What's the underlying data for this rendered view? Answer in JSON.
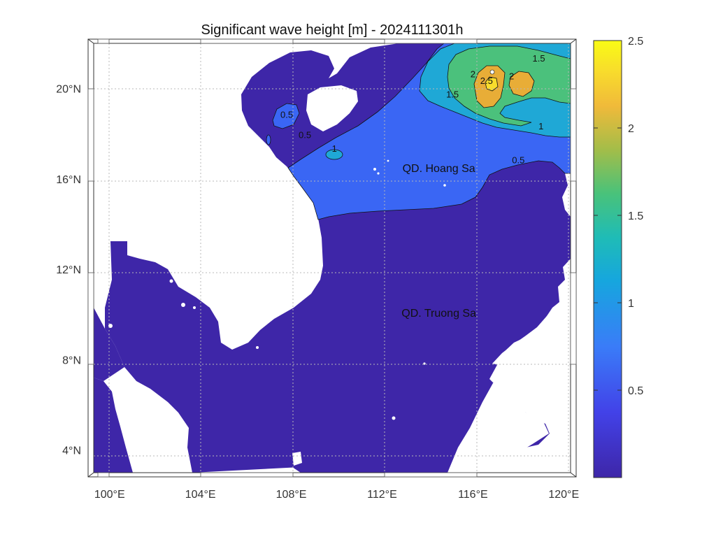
{
  "title": "Significant wave height [m] - 2024111301h",
  "map": {
    "lon_range": [
      99.3,
      120.3
    ],
    "lat_range": [
      3.0,
      22.0
    ],
    "lon_ticks": [
      100,
      104,
      108,
      112,
      116,
      120
    ],
    "lat_ticks": [
      4,
      8,
      12,
      16,
      20
    ],
    "lon_labels": [
      "100°E",
      "104°E",
      "108°E",
      "112°E",
      "116°E",
      "120°E"
    ],
    "lat_labels": [
      "4°N",
      "8°N",
      "12°N",
      "16°N",
      "20°N"
    ],
    "grid": true,
    "land_color": "#ffffff"
  },
  "places": [
    {
      "name": "QD. Hoang Sa",
      "lon": 114.5,
      "lat": 16.3
    },
    {
      "name": "QD. Truong Sa",
      "lon": 114.5,
      "lat": 9.9
    }
  ],
  "contour_labels": [
    {
      "text": "0.5",
      "lon": 107.8,
      "lat": 18.7
    },
    {
      "text": "0.5",
      "lon": 108.6,
      "lat": 17.8
    },
    {
      "text": "1",
      "lon": 109.9,
      "lat": 17.2
    },
    {
      "text": "0.5",
      "lon": 118.0,
      "lat": 16.7
    },
    {
      "text": "1.5",
      "lon": 118.9,
      "lat": 21.2
    },
    {
      "text": "2",
      "lon": 116.0,
      "lat": 20.5
    },
    {
      "text": "2.5",
      "lon": 116.6,
      "lat": 20.2
    },
    {
      "text": "2",
      "lon": 117.7,
      "lat": 20.4
    },
    {
      "text": "1.5",
      "lon": 115.1,
      "lat": 19.6
    },
    {
      "text": "1",
      "lon": 119.0,
      "lat": 18.2
    }
  ],
  "colorbar": {
    "min": 0,
    "max": 2.5,
    "ticks": [
      "2.5",
      "2",
      "1.5",
      "1",
      "0.5"
    ],
    "colors": [
      "#3e26a8",
      "#3e7cfe",
      "#1fb9c9",
      "#4ac16d",
      "#e9ad38",
      "#f9fb15"
    ]
  }
}
